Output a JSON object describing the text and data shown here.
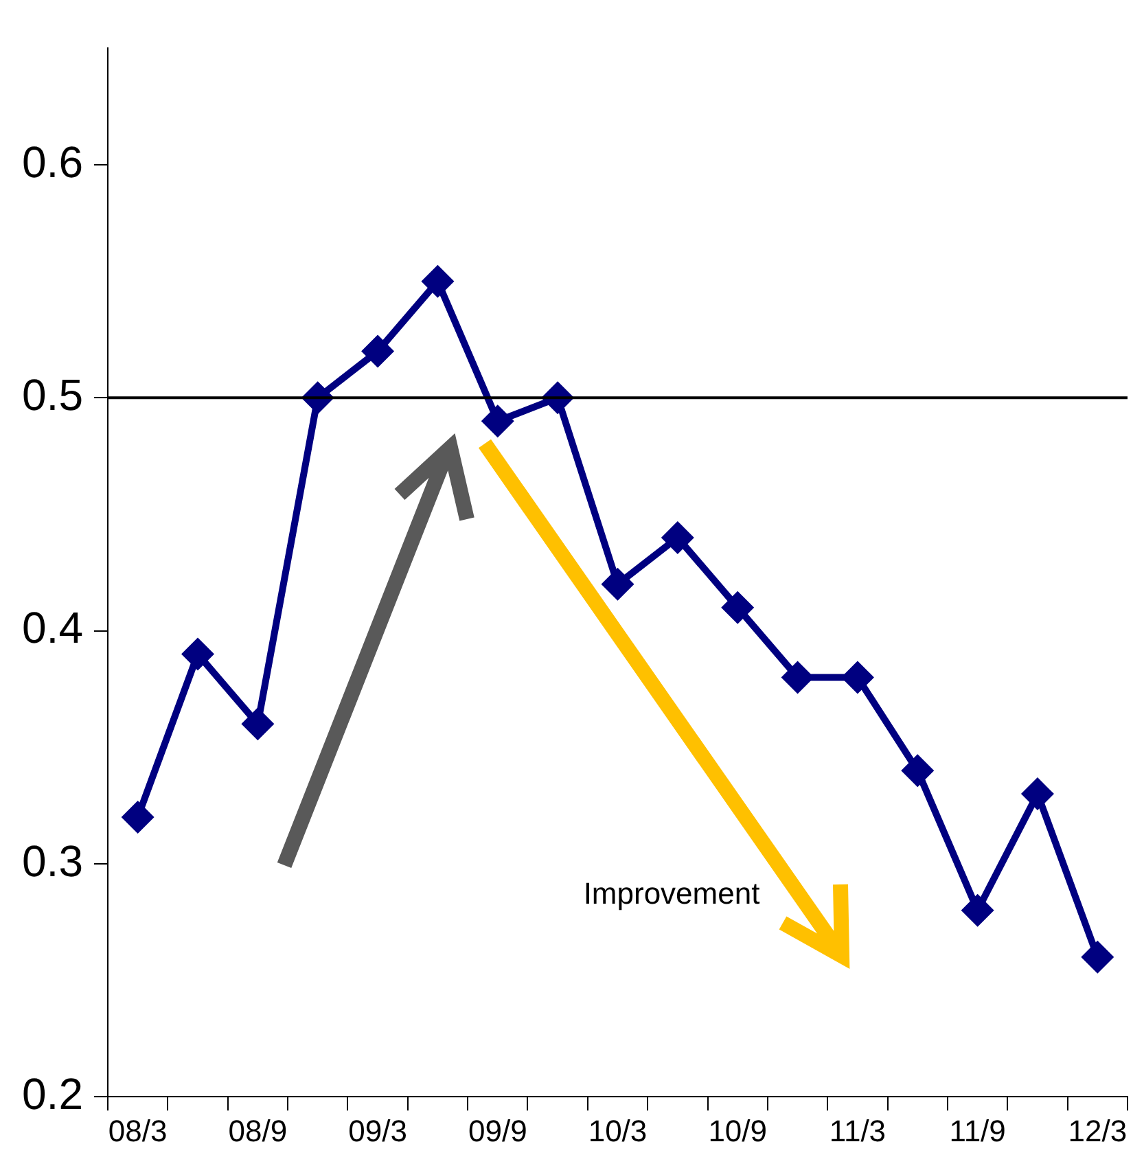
{
  "chart_data": {
    "type": "line",
    "categories": [
      "08/3",
      null,
      "08/9",
      null,
      "09/3",
      null,
      "09/9",
      null,
      "10/3",
      null,
      "10/9",
      null,
      "11/3",
      null,
      "11/9",
      null,
      "12/3"
    ],
    "series": [
      {
        "color": "#000080",
        "values": [
          0.32,
          0.39,
          0.36,
          0.5,
          0.52,
          0.55,
          0.49,
          0.5,
          0.42,
          0.44,
          0.41,
          0.38,
          0.38,
          0.34,
          0.28,
          0.33,
          0.26
        ]
      }
    ],
    "ylim": [
      0.2,
      0.65
    ],
    "yticks": [
      0.2,
      0.3,
      0.4,
      0.5,
      0.6
    ],
    "marker": "diamond",
    "line_style": "solid",
    "grid": false,
    "legend": false,
    "ref_lines": [
      {
        "axis": "y",
        "value": 0.5,
        "color": "#000000"
      }
    ],
    "annotations": [
      "Improvement"
    ]
  }
}
